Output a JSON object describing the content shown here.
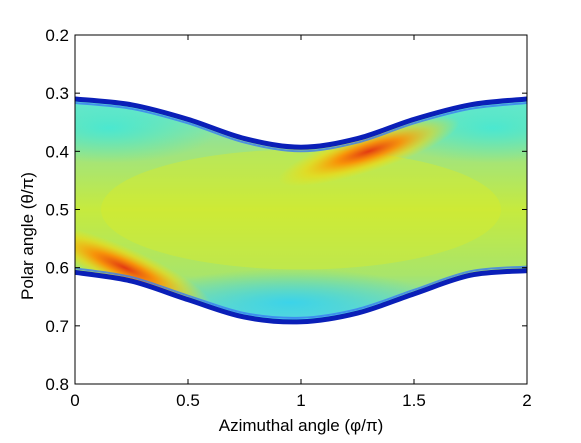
{
  "chart_data": {
    "type": "heatmap",
    "title": "",
    "xlabel": "Azimuthal angle (φ/π)",
    "ylabel": "Polar angle (θ/π)",
    "xlim": [
      0,
      2
    ],
    "ylim": [
      0.2,
      0.8
    ],
    "y_axis_reversed": true,
    "x_ticks": [
      "0",
      "0.5",
      "1",
      "1.5",
      "2"
    ],
    "y_ticks": [
      "0.2",
      "0.3",
      "0.4",
      "0.5",
      "0.6",
      "0.7",
      "0.8"
    ],
    "x_tick_values": [
      0,
      0.5,
      1,
      1.5,
      2
    ],
    "y_tick_values": [
      0.2,
      0.3,
      0.4,
      0.5,
      0.6,
      0.7,
      0.8
    ],
    "grid": false,
    "colormap": "jet",
    "band_upper_edge": {
      "x": [
        0,
        0.25,
        0.5,
        0.75,
        1.0,
        1.25,
        1.5,
        1.75,
        2.0
      ],
      "y": [
        0.31,
        0.32,
        0.345,
        0.378,
        0.393,
        0.378,
        0.345,
        0.32,
        0.31
      ]
    },
    "band_lower_edge": {
      "x": [
        0,
        0.25,
        0.5,
        0.75,
        1.0,
        1.25,
        1.5,
        1.75,
        2.0
      ],
      "y": [
        0.608,
        0.623,
        0.655,
        0.685,
        0.693,
        0.678,
        0.645,
        0.613,
        0.605
      ]
    },
    "hotspots": [
      {
        "x": 0.22,
        "y": 0.6,
        "level": "red"
      },
      {
        "x": 1.3,
        "y": 0.4,
        "level": "red"
      }
    ],
    "dominant_band_color": "yellow-green"
  }
}
